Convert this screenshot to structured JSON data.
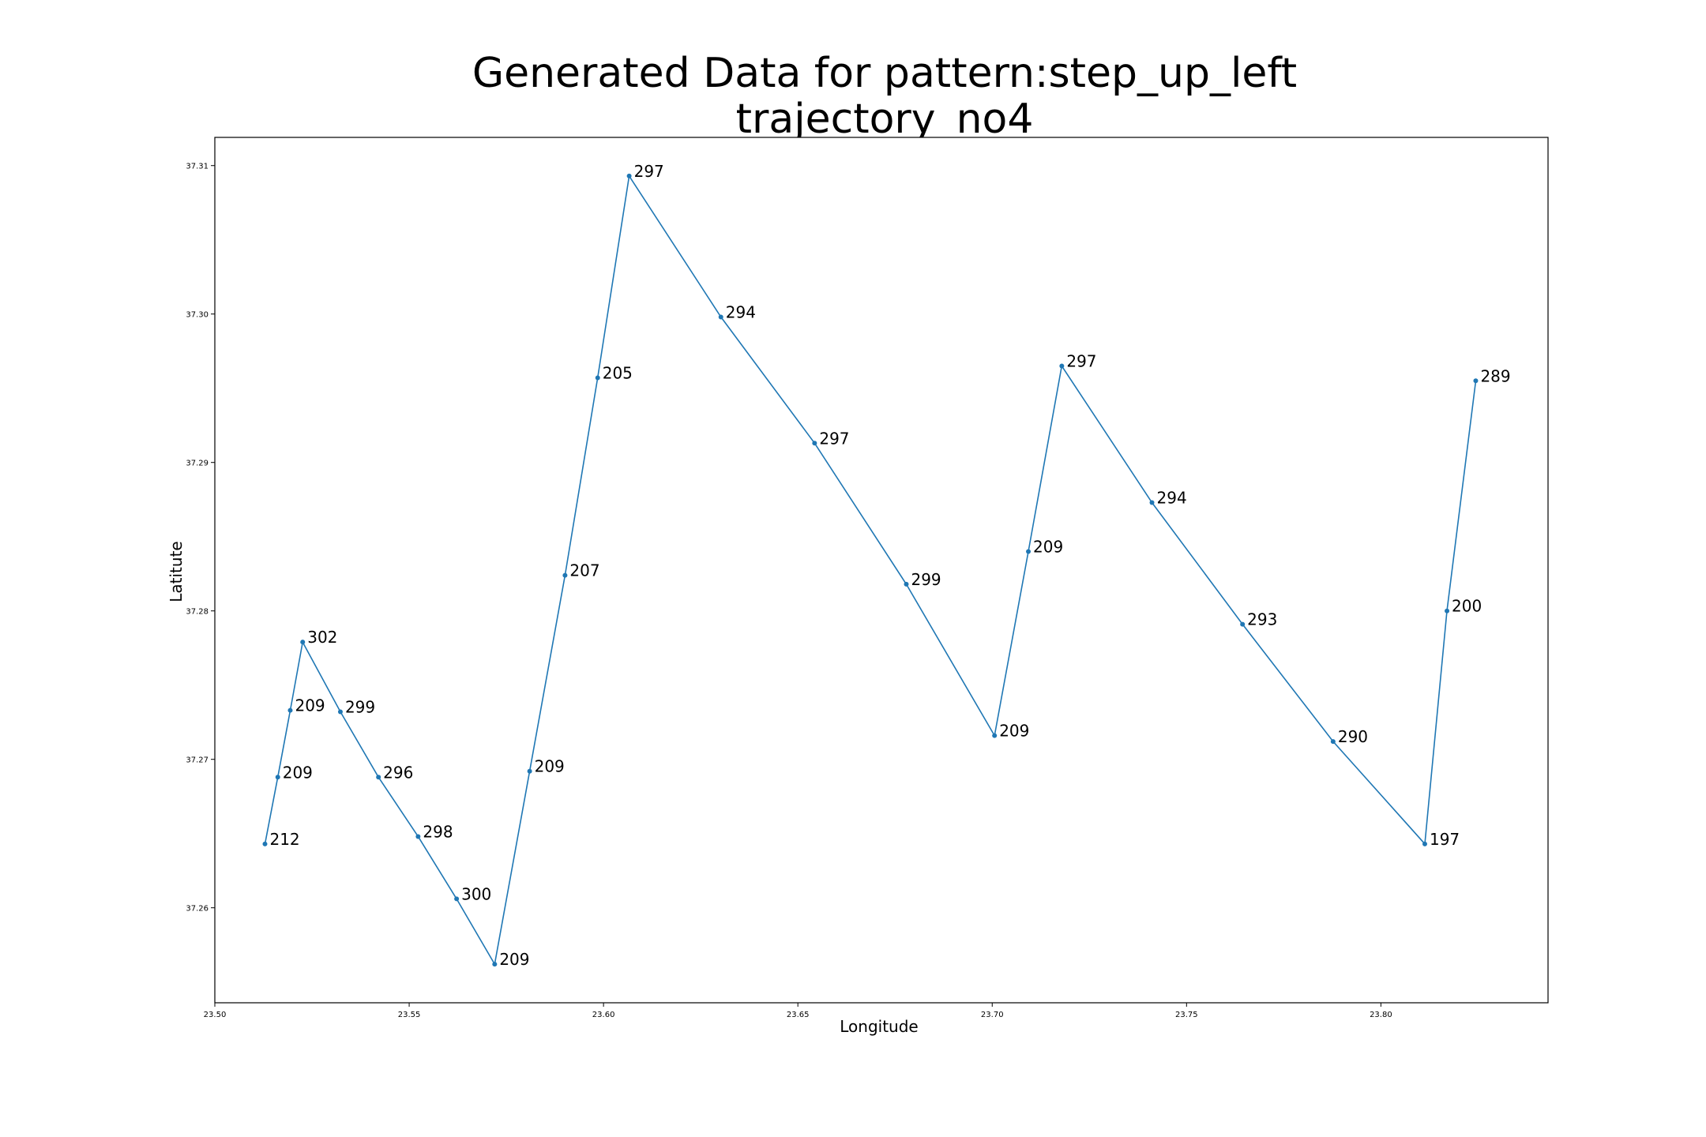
{
  "chart_data": {
    "type": "line",
    "title": "Generated Data for pattern:step_up_left",
    "subtitle": "trajectory_no4",
    "xlabel": "Longitude",
    "ylabel": "Latitute",
    "xlim": [
      23.5,
      23.843
    ],
    "ylim": [
      37.2536,
      37.3119
    ],
    "xticks": [
      "23.50",
      "23.55",
      "23.60",
      "23.65",
      "23.70",
      "23.75",
      "23.80"
    ],
    "yticks": [
      "37.26",
      "37.27",
      "37.28",
      "37.29",
      "37.30",
      "37.31"
    ],
    "grid": false,
    "color": "#1f77b4",
    "series": [
      {
        "points": [
          {
            "x": 23.5129,
            "y": 37.2643,
            "label": "212"
          },
          {
            "x": 23.5162,
            "y": 37.2688,
            "label": "209"
          },
          {
            "x": 23.5194,
            "y": 37.2733,
            "label": "209"
          },
          {
            "x": 23.5226,
            "y": 37.2779,
            "label": "302"
          },
          {
            "x": 23.5323,
            "y": 37.2732,
            "label": "299"
          },
          {
            "x": 23.5421,
            "y": 37.2688,
            "label": "296"
          },
          {
            "x": 23.5523,
            "y": 37.2648,
            "label": "298"
          },
          {
            "x": 23.5622,
            "y": 37.2606,
            "label": "300"
          },
          {
            "x": 23.572,
            "y": 37.2562,
            "label": "209"
          },
          {
            "x": 23.581,
            "y": 37.2692,
            "label": "209"
          },
          {
            "x": 23.5901,
            "y": 37.2824,
            "label": "207"
          },
          {
            "x": 23.5985,
            "y": 37.2957,
            "label": "205"
          },
          {
            "x": 23.6066,
            "y": 37.3093,
            "label": "297"
          },
          {
            "x": 23.6302,
            "y": 37.2998,
            "label": "294"
          },
          {
            "x": 23.6543,
            "y": 37.2913,
            "label": "297"
          },
          {
            "x": 23.6779,
            "y": 37.2818,
            "label": "299"
          },
          {
            "x": 23.7006,
            "y": 37.2716,
            "label": "209"
          },
          {
            "x": 23.7093,
            "y": 37.284,
            "label": "209"
          },
          {
            "x": 23.7179,
            "y": 37.2965,
            "label": "297"
          },
          {
            "x": 23.7411,
            "y": 37.2873,
            "label": "294"
          },
          {
            "x": 23.7644,
            "y": 37.2791,
            "label": "293"
          },
          {
            "x": 23.7877,
            "y": 37.2712,
            "label": "290"
          },
          {
            "x": 23.8113,
            "y": 37.2643,
            "label": "197"
          },
          {
            "x": 23.817,
            "y": 37.28,
            "label": "200"
          },
          {
            "x": 23.8244,
            "y": 37.2955,
            "label": "289"
          }
        ]
      }
    ]
  }
}
